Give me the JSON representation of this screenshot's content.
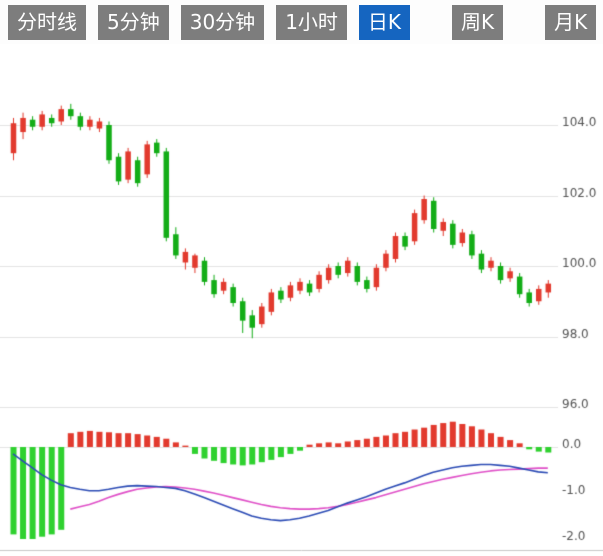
{
  "toolbar": {
    "active_bg": "#1565c0",
    "inactive_bg": "#7d7d7d",
    "tabs": [
      {
        "label": "分时线",
        "active": false
      },
      {
        "label": "5分钟",
        "active": false
      },
      {
        "label": "30分钟",
        "active": false
      },
      {
        "label": "1小时",
        "active": false
      },
      {
        "label": "日K",
        "active": true
      },
      {
        "label": "周K",
        "active": false
      },
      {
        "label": "月K",
        "active": false
      }
    ]
  },
  "chart_data": {
    "type": "candlestick+macd",
    "title": "",
    "legend_position": "none",
    "grid": true,
    "price_axis": {
      "side": "right",
      "range": [
        95.0,
        106.0
      ],
      "ticks": [
        {
          "value": 104,
          "label": "104.0"
        },
        {
          "value": 102,
          "label": "102.0"
        },
        {
          "value": 100,
          "label": "100.0"
        },
        {
          "value": 98,
          "label": "98.0"
        },
        {
          "value": 96,
          "label": "96.0"
        }
      ]
    },
    "macd_axis": {
      "side": "right",
      "range": [
        -2.2,
        0.6
      ],
      "ticks": [
        {
          "value": 0,
          "label": "0.0"
        },
        {
          "value": -1,
          "label": "-1.0"
        },
        {
          "value": -2,
          "label": "-2.0"
        }
      ]
    },
    "candles_ohlc": [
      [
        103.2,
        104.2,
        103.0,
        104.05
      ],
      [
        103.8,
        104.35,
        103.6,
        104.2
      ],
      [
        104.15,
        104.25,
        103.85,
        103.95
      ],
      [
        103.95,
        104.4,
        103.85,
        104.3
      ],
      [
        104.2,
        104.3,
        103.95,
        104.05
      ],
      [
        104.1,
        104.55,
        104.0,
        104.45
      ],
      [
        104.45,
        104.6,
        104.15,
        104.25
      ],
      [
        104.25,
        104.35,
        103.85,
        103.95
      ],
      [
        103.95,
        104.25,
        103.85,
        104.15
      ],
      [
        103.9,
        104.2,
        103.8,
        104.1
      ],
      [
        104.0,
        104.1,
        102.9,
        103.0
      ],
      [
        103.1,
        103.2,
        102.3,
        102.4
      ],
      [
        102.45,
        103.35,
        102.35,
        103.25
      ],
      [
        103.0,
        103.1,
        102.25,
        102.35
      ],
      [
        102.6,
        103.55,
        102.5,
        103.45
      ],
      [
        103.5,
        103.6,
        103.1,
        103.2
      ],
      [
        103.25,
        103.35,
        100.7,
        100.8
      ],
      [
        100.9,
        101.1,
        100.2,
        100.3
      ],
      [
        100.1,
        100.5,
        99.9,
        100.4
      ],
      [
        99.95,
        100.35,
        99.8,
        100.3
      ],
      [
        100.15,
        100.25,
        99.45,
        99.55
      ],
      [
        99.6,
        99.75,
        99.1,
        99.2
      ],
      [
        99.3,
        99.65,
        99.2,
        99.55
      ],
      [
        99.4,
        99.5,
        98.85,
        98.95
      ],
      [
        99.0,
        99.1,
        98.1,
        98.45
      ],
      [
        98.6,
        98.75,
        97.95,
        98.25
      ],
      [
        98.35,
        98.95,
        98.25,
        98.85
      ],
      [
        98.7,
        99.35,
        98.6,
        99.25
      ],
      [
        99.3,
        99.4,
        98.95,
        99.05
      ],
      [
        99.1,
        99.55,
        99.0,
        99.45
      ],
      [
        99.3,
        99.65,
        99.2,
        99.55
      ],
      [
        99.5,
        99.6,
        99.15,
        99.25
      ],
      [
        99.35,
        99.85,
        99.25,
        99.75
      ],
      [
        99.6,
        100.05,
        99.5,
        99.95
      ],
      [
        100.0,
        100.1,
        99.65,
        99.75
      ],
      [
        99.8,
        100.25,
        99.7,
        100.15
      ],
      [
        100.0,
        100.1,
        99.45,
        99.55
      ],
      [
        99.6,
        99.7,
        99.25,
        99.35
      ],
      [
        99.4,
        100.05,
        99.3,
        99.95
      ],
      [
        99.95,
        100.45,
        99.85,
        100.35
      ],
      [
        100.2,
        100.95,
        100.1,
        100.85
      ],
      [
        100.85,
        100.95,
        100.45,
        100.55
      ],
      [
        100.7,
        101.6,
        100.6,
        101.5
      ],
      [
        101.3,
        102.0,
        101.2,
        101.9
      ],
      [
        101.85,
        101.95,
        100.95,
        101.05
      ],
      [
        101.0,
        101.35,
        100.85,
        101.25
      ],
      [
        101.2,
        101.3,
        100.5,
        100.6
      ],
      [
        100.65,
        101.05,
        100.55,
        100.95
      ],
      [
        100.9,
        101.0,
        100.2,
        100.3
      ],
      [
        100.35,
        100.45,
        99.8,
        99.9
      ],
      [
        99.95,
        100.25,
        99.85,
        100.15
      ],
      [
        100.0,
        100.1,
        99.5,
        99.6
      ],
      [
        99.65,
        99.95,
        99.55,
        99.85
      ],
      [
        99.7,
        99.8,
        99.1,
        99.2
      ],
      [
        99.25,
        99.35,
        98.85,
        98.95
      ],
      [
        99.0,
        99.45,
        98.9,
        99.35
      ],
      [
        99.25,
        99.6,
        99.1,
        99.5
      ]
    ],
    "macd": {
      "histogram": [
        -1.9,
        -2.0,
        -2.0,
        -1.95,
        -1.9,
        -1.8,
        0.3,
        0.33,
        0.35,
        0.33,
        0.32,
        0.3,
        0.3,
        0.28,
        0.25,
        0.22,
        0.18,
        0.1,
        0.03,
        -0.15,
        -0.25,
        -0.3,
        -0.35,
        -0.38,
        -0.4,
        -0.38,
        -0.33,
        -0.28,
        -0.22,
        -0.15,
        -0.08,
        0.05,
        0.08,
        0.1,
        0.08,
        0.12,
        0.15,
        0.18,
        0.22,
        0.25,
        0.3,
        0.33,
        0.38,
        0.42,
        0.48,
        0.52,
        0.55,
        0.5,
        0.45,
        0.38,
        0.3,
        0.22,
        0.15,
        0.08,
        -0.05,
        -0.1,
        -0.12
      ],
      "dif": [
        -0.15,
        -0.3,
        -0.45,
        -0.6,
        -0.72,
        -0.82,
        -0.88,
        -0.92,
        -0.95,
        -0.95,
        -0.92,
        -0.88,
        -0.85,
        -0.84,
        -0.85,
        -0.86,
        -0.88,
        -0.9,
        -0.95,
        -1.02,
        -1.1,
        -1.18,
        -1.26,
        -1.34,
        -1.42,
        -1.5,
        -1.55,
        -1.58,
        -1.6,
        -1.58,
        -1.55,
        -1.5,
        -1.44,
        -1.38,
        -1.3,
        -1.22,
        -1.15,
        -1.08,
        -1.0,
        -0.92,
        -0.85,
        -0.78,
        -0.7,
        -0.62,
        -0.55,
        -0.5,
        -0.45,
        -0.42,
        -0.4,
        -0.38,
        -0.38,
        -0.4,
        -0.42,
        -0.46,
        -0.5,
        -0.54,
        -0.56
      ],
      "dea": [
        null,
        null,
        null,
        null,
        null,
        null,
        -1.35,
        -1.3,
        -1.25,
        -1.18,
        -1.1,
        -1.03,
        -0.97,
        -0.92,
        -0.89,
        -0.87,
        -0.86,
        -0.87,
        -0.89,
        -0.92,
        -0.96,
        -1.0,
        -1.05,
        -1.1,
        -1.15,
        -1.2,
        -1.25,
        -1.29,
        -1.32,
        -1.34,
        -1.35,
        -1.35,
        -1.34,
        -1.32,
        -1.29,
        -1.25,
        -1.2,
        -1.15,
        -1.1,
        -1.04,
        -0.98,
        -0.92,
        -0.86,
        -0.8,
        -0.75,
        -0.7,
        -0.66,
        -0.62,
        -0.58,
        -0.55,
        -0.52,
        -0.5,
        -0.49,
        -0.48,
        -0.47,
        -0.46,
        -0.46
      ]
    },
    "colors": {
      "up": "#e23a2e",
      "down": "#13ad17",
      "hist_up": "#e23a2e",
      "hist_down": "#2fd12f",
      "dif_line": "#2b4bb5",
      "dea_line": "#e050c8",
      "grid": "#e4e4e4",
      "axis_text": "#555555",
      "panel_border": "#c8c8c8"
    }
  }
}
